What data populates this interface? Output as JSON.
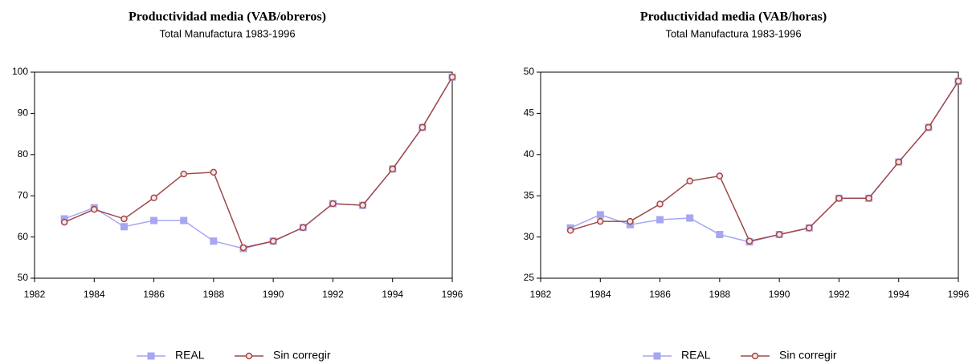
{
  "chart_data": [
    {
      "type": "line",
      "title": "Productividad media (VAB/obreros)",
      "subtitle": "Total Manufactura  1983-1996",
      "x": [
        1983,
        1984,
        1985,
        1986,
        1987,
        1988,
        1989,
        1990,
        1991,
        1992,
        1993,
        1994,
        1995,
        1996
      ],
      "series": [
        {
          "name": "REAL",
          "color": "#a6a6f2",
          "marker": "square",
          "values": [
            64.4,
            67.1,
            62.5,
            64.0,
            64.0,
            59.0,
            57.2,
            59.0,
            62.3,
            68.1,
            67.7,
            76.5,
            86.6,
            98.8
          ]
        },
        {
          "name": "Sin corregir",
          "color": "#a04848",
          "marker": "circle",
          "values": [
            63.6,
            66.7,
            64.4,
            69.5,
            75.3,
            75.7,
            57.4,
            59.0,
            62.3,
            68.1,
            67.7,
            76.5,
            86.6,
            98.8
          ]
        }
      ],
      "xlim": [
        1982,
        1996
      ],
      "xticks": [
        1982,
        1984,
        1986,
        1988,
        1990,
        1992,
        1994,
        1996
      ],
      "ylim": [
        50,
        100
      ],
      "yticks": [
        50,
        60,
        70,
        80,
        90,
        100
      ],
      "grid": false,
      "legend": "bottom"
    },
    {
      "type": "line",
      "title": "Productividad media (VAB/horas)",
      "subtitle": "Total Manufactura  1983-1996",
      "x": [
        1983,
        1984,
        1985,
        1986,
        1987,
        1988,
        1989,
        1990,
        1991,
        1992,
        1993,
        1994,
        1995,
        1996
      ],
      "series": [
        {
          "name": "REAL",
          "color": "#a6a6f2",
          "marker": "square",
          "values": [
            31.1,
            32.7,
            31.5,
            32.1,
            32.3,
            30.3,
            29.4,
            30.3,
            31.1,
            34.7,
            34.7,
            39.1,
            43.3,
            48.9
          ]
        },
        {
          "name": "Sin corregir",
          "color": "#a04848",
          "marker": "circle",
          "values": [
            30.8,
            31.9,
            31.9,
            34.0,
            36.8,
            37.4,
            29.5,
            30.3,
            31.1,
            34.7,
            34.7,
            39.1,
            43.3,
            48.9
          ]
        }
      ],
      "xlim": [
        1982,
        1996
      ],
      "xticks": [
        1982,
        1984,
        1986,
        1988,
        1990,
        1992,
        1994,
        1996
      ],
      "ylim": [
        25,
        50
      ],
      "yticks": [
        25,
        30,
        35,
        40,
        45,
        50
      ],
      "grid": false,
      "legend": "bottom"
    }
  ]
}
